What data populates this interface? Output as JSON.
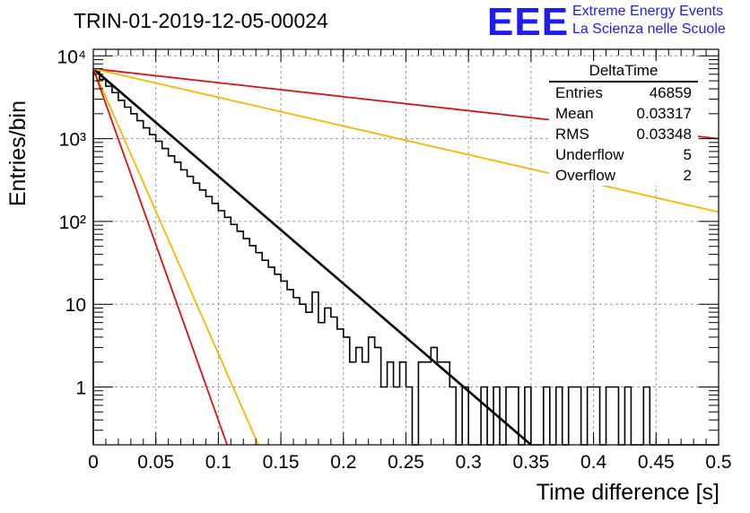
{
  "title": "TRIN-01-2019-12-05-00024",
  "logo": {
    "mark": "EEE",
    "line1": "Extreme Energy Events",
    "line2": "La Scienza nelle Scuole"
  },
  "stats_box": {
    "title": "DeltaTime",
    "rows": [
      {
        "label": "Entries",
        "value": "46859"
      },
      {
        "label": "Mean",
        "value": "0.03317"
      },
      {
        "label": "RMS",
        "value": "0.03348"
      },
      {
        "label": "Underflow",
        "value": "5"
      },
      {
        "label": "Overflow",
        "value": "2"
      }
    ]
  },
  "colors": {
    "histogram": "#000000",
    "fit_black": "#000000",
    "red": "#dd1111",
    "orange": "#f5b800",
    "grid": "#9a9a9a",
    "logo": "#1d1df0"
  },
  "chart_data": {
    "type": "line",
    "title": "TRIN-01-2019-12-05-00024",
    "xlabel": "Time difference [s]",
    "ylabel": "Entries/bin",
    "xlim": [
      0,
      0.5
    ],
    "ylim": [
      0.2,
      12000
    ],
    "yscale": "log",
    "grid": true,
    "x_ticks": [
      "0",
      "0.05",
      "0.1",
      "0.15",
      "0.2",
      "0.25",
      "0.3",
      "0.35",
      "0.4",
      "0.45",
      "0.5"
    ],
    "y_ticks": [
      {
        "value": 1,
        "label": "1"
      },
      {
        "value": 10,
        "label": "10"
      },
      {
        "value": 100,
        "label": "10²"
      },
      {
        "value": 1000,
        "label": "10³"
      },
      {
        "value": 10000,
        "label": "10⁴"
      }
    ],
    "histogram": {
      "name": "DeltaTime",
      "bin_width": 0.005,
      "x_start": 0,
      "values": [
        6400,
        5200,
        4300,
        3600,
        2900,
        2400,
        2000,
        1650,
        1350,
        1120,
        930,
        760,
        620,
        520,
        420,
        350,
        290,
        240,
        200,
        165,
        135,
        112,
        92,
        76,
        62,
        51,
        42,
        34,
        28,
        23,
        19,
        15,
        12,
        10,
        8,
        14,
        6,
        9,
        7,
        5,
        4,
        2,
        3,
        2,
        4,
        3,
        1,
        2,
        1,
        2,
        1,
        0,
        2,
        2,
        3,
        2,
        2,
        1,
        0,
        1,
        0,
        0,
        1,
        0,
        1,
        0,
        1,
        1,
        0,
        1,
        0,
        0,
        1,
        0,
        1,
        0,
        1,
        1,
        0,
        1,
        1,
        0,
        1,
        1,
        0,
        1,
        0,
        0,
        1,
        0,
        0,
        0,
        0,
        0,
        0,
        0,
        0,
        0,
        0,
        0
      ]
    },
    "series": [
      {
        "color": "#000000",
        "x": [
          0,
          0.35
        ],
        "y": [
          7000,
          0.2
        ]
      },
      {
        "color": "#dd1111",
        "x": [
          0,
          0.5
        ],
        "y": [
          7000,
          1000
        ]
      },
      {
        "color": "#f5b800",
        "x": [
          0,
          0.5
        ],
        "y": [
          7000,
          130
        ]
      },
      {
        "color": "#f5b800",
        "x": [
          0,
          0.132
        ],
        "y": [
          7000,
          0.2
        ]
      },
      {
        "color": "#dd1111",
        "x": [
          0,
          0.107
        ],
        "y": [
          7000,
          0.2
        ]
      }
    ]
  }
}
